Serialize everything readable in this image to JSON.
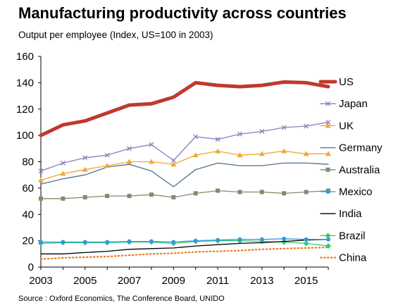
{
  "chart_data": {
    "type": "line",
    "title": "Manufacturing productivity across countries",
    "subtitle": "Output per employee (Index, US=100 in 2003)",
    "source": "Source : Oxford Economics, The Conference Board, UNIDO",
    "x": [
      2003,
      2004,
      2005,
      2006,
      2007,
      2008,
      2009,
      2010,
      2011,
      2012,
      2013,
      2014,
      2015,
      2016
    ],
    "x_tick_labels": [
      "2003",
      "2005",
      "2007",
      "2009",
      "2011",
      "2013",
      "2015"
    ],
    "x_tick_values": [
      2003,
      2005,
      2007,
      2009,
      2011,
      2013,
      2015
    ],
    "ylim": [
      0,
      160
    ],
    "y_ticks": [
      0,
      20,
      40,
      60,
      80,
      100,
      120,
      140,
      160
    ],
    "y_tick_labels": [
      "0",
      "20",
      "40",
      "60",
      "80",
      "100",
      "120",
      "140",
      "160"
    ],
    "grid": false,
    "legend_position": "right",
    "series": [
      {
        "name": "US",
        "color": "#c0392b",
        "marker": "none",
        "style": "thick",
        "values": [
          100,
          108,
          111,
          117,
          123,
          124,
          129,
          140,
          138,
          137,
          138,
          140.5,
          140,
          137
        ]
      },
      {
        "name": "Japan",
        "color": "#8e7cc3",
        "marker": "x",
        "style": "solid",
        "values": [
          73,
          79,
          83,
          85,
          90,
          93,
          81,
          99,
          97,
          101,
          103,
          106,
          107,
          110
        ]
      },
      {
        "name": "UK",
        "color": "#f0a830",
        "marker": "triangle",
        "style": "solid",
        "values": [
          66,
          71,
          74,
          77,
          80,
          80,
          78,
          85,
          88,
          85,
          86,
          88,
          86,
          86
        ]
      },
      {
        "name": "Germany",
        "color": "#4f6f8f",
        "marker": "none",
        "style": "solid",
        "values": [
          63,
          67,
          70,
          76,
          78,
          73,
          61,
          74,
          79,
          77,
          77,
          79,
          79,
          78
        ]
      },
      {
        "name": "Australia",
        "color": "#7f8c6d",
        "marker": "square",
        "style": "solid",
        "values": [
          52,
          52,
          53,
          54,
          54,
          55,
          53,
          56,
          58,
          57,
          57,
          56,
          57,
          58
        ]
      },
      {
        "name": "Mexico",
        "color": "#3498db",
        "marker": "circle",
        "style": "solid",
        "values": [
          19,
          19,
          19,
          19,
          19.5,
          19.5,
          19,
          20,
          20.5,
          21,
          21,
          21.5,
          21,
          21
        ]
      },
      {
        "name": "India",
        "color": "#000000",
        "marker": "none",
        "style": "solid",
        "values": [
          10,
          10,
          11,
          12,
          13.5,
          14,
          14.5,
          16,
          17,
          18,
          18.5,
          19.5,
          20.5,
          21
        ]
      },
      {
        "name": "Brazil",
        "color": "#2ecc71",
        "marker": "diamond",
        "style": "solid",
        "values": [
          18,
          18.5,
          18.5,
          18.5,
          19,
          19,
          18,
          19.5,
          20,
          20,
          19.5,
          19,
          18,
          16
        ]
      },
      {
        "name": "China",
        "color": "#e67e22",
        "marker": "none",
        "style": "dotted",
        "values": [
          6,
          7,
          7.5,
          8,
          9,
          10,
          10.5,
          11.5,
          12,
          12.5,
          13.5,
          14,
          14.5,
          15
        ]
      }
    ]
  }
}
